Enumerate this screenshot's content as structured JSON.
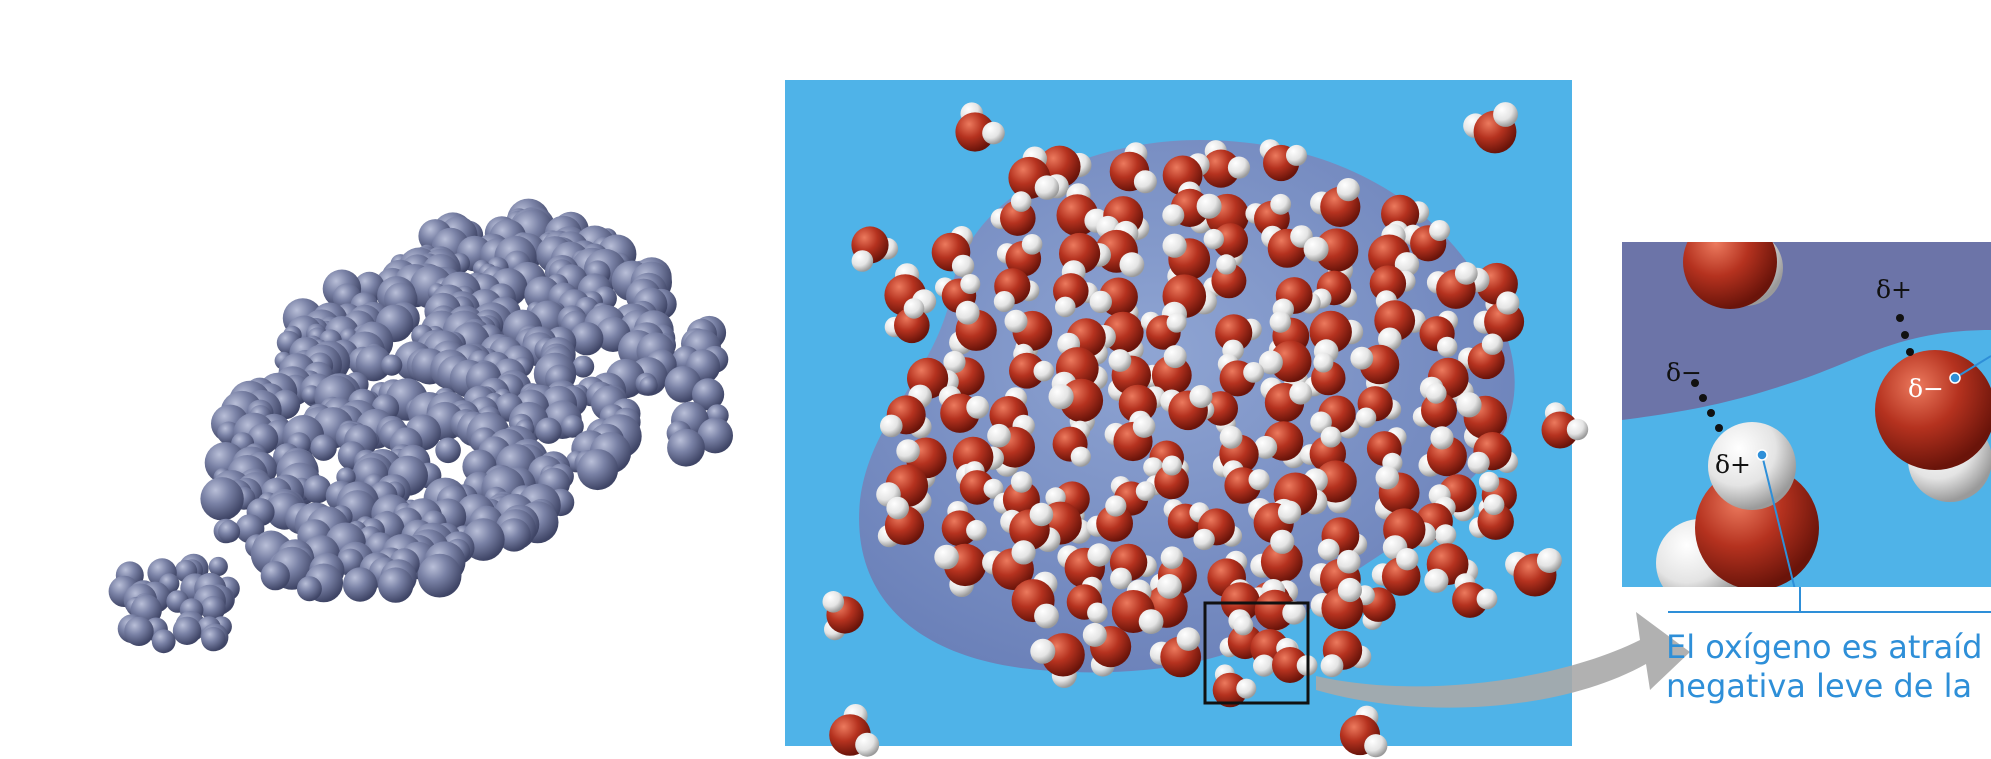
{
  "colors": {
    "protein": "#6c7397",
    "water_background": "#4fb3e8",
    "oxygen": "#b5321f",
    "hydrogen": "#e9e9e9",
    "caption_text": "#2e8fd8",
    "zoom_frame": "#111111",
    "arrow": "#a9a9a9"
  },
  "inset": {
    "labels": {
      "delta_plus_top": "δ+",
      "delta_minus_left": "δ−",
      "delta_plus_bottom": "δ+",
      "delta_minus_right": "δ−"
    }
  },
  "caption": {
    "line1": "El oxígeno es atraíd",
    "line2": "negativa leve de la"
  }
}
